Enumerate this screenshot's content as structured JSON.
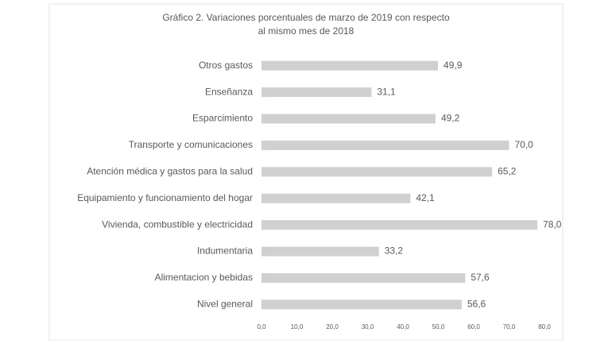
{
  "chart_data": {
    "type": "bar",
    "orientation": "horizontal",
    "title_lines": [
      "Gráfico 2. Variaciones porcentuales de marzo de 2019 con respecto",
      "al mismo mes de 2018"
    ],
    "categories": [
      "Otros gastos",
      "Enseñanza",
      "Esparcimiento",
      "Transporte y comunicaciones",
      "Atención médica y gastos para la salud",
      "Equipamiento y funcionamiento del hogar",
      "Vivienda, combustible y electricidad",
      "Indumentaria",
      "Alimentacion y bebidas",
      "Nivel general"
    ],
    "values": [
      49.9,
      31.1,
      49.2,
      70.0,
      65.2,
      42.1,
      78.0,
      33.2,
      57.6,
      56.6
    ],
    "value_labels": [
      "49,9",
      "31,1",
      "49,2",
      "70,0",
      "65,2",
      "42,1",
      "78,0",
      "33,2",
      "57,6",
      "56,6"
    ],
    "color": "#d0d0d0",
    "xlim": [
      0,
      80
    ],
    "xticks": [
      {
        "value": 0,
        "label": "0,0"
      },
      {
        "value": 10,
        "label": "10,0"
      },
      {
        "value": 20,
        "label": "20,0"
      },
      {
        "value": 30,
        "label": "30,0"
      },
      {
        "value": 40,
        "label": "40,0"
      },
      {
        "value": 50,
        "label": "50,0"
      },
      {
        "value": 60,
        "label": "60,0"
      },
      {
        "value": 70,
        "label": "70,0"
      },
      {
        "value": 80,
        "label": "80,0"
      }
    ],
    "grid": false
  }
}
